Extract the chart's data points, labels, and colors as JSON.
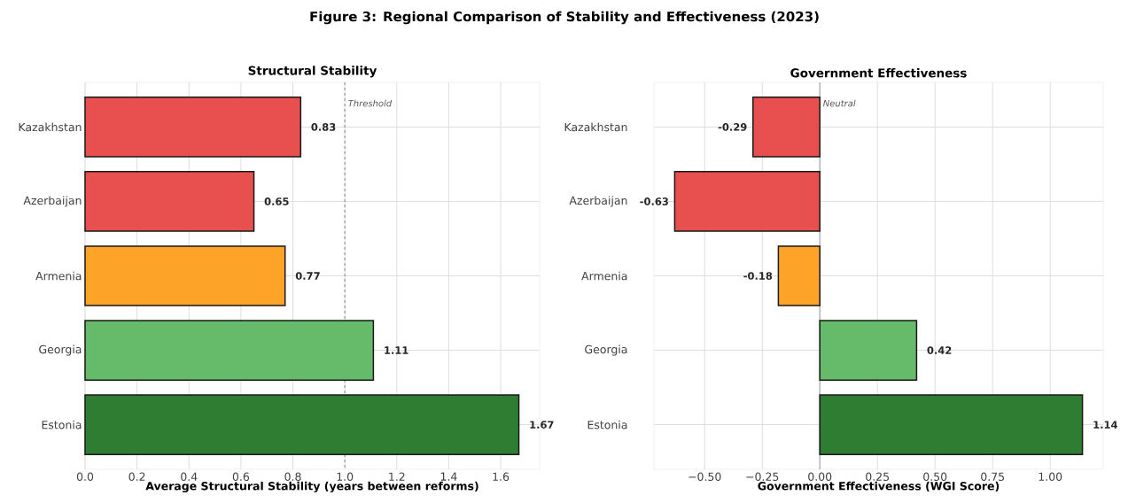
{
  "chart_data": [
    {
      "type": "bar",
      "orientation": "horizontal",
      "title": "Structural Stability",
      "xlabel": "Average Structural Stability (years between reforms)",
      "annotations": [
        "Figure 3: Regional Comparison of Stability and Effectiveness (2023)"
      ],
      "categories": [
        "Kazakhstan",
        "Azerbaijan",
        "Armenia",
        "Georgia",
        "Estonia"
      ],
      "values": [
        0.83,
        0.65,
        0.77,
        1.11,
        1.67
      ],
      "colors": [
        "#e85050",
        "#e85050",
        "#fda428",
        "#66bb6a",
        "#2e7d32"
      ],
      "xlim": [
        0,
        1.75
      ],
      "xticks": [
        {
          "value": 0,
          "label": "0.0"
        },
        0.2,
        0.4,
        0.6,
        0.8,
        {
          "value": 1.0,
          "label": "1.0"
        },
        1.2,
        1.4,
        1.6
      ],
      "ref_lines": [
        {
          "axis": "x",
          "value": 1.0,
          "label": "Threshold",
          "color": "#999999",
          "line_style": "dashed"
        }
      ],
      "data_labels": true,
      "grid": true
    },
    {
      "type": "bar",
      "orientation": "horizontal",
      "title": "Government Effectiveness",
      "xlabel": "Government Effectiveness (WGI Score)",
      "categories": [
        "Kazakhstan",
        "Azerbaijan",
        "Armenia",
        "Georgia",
        "Estonia"
      ],
      "values": [
        -0.29,
        -0.63,
        -0.18,
        0.42,
        1.14
      ],
      "colors": [
        "#e85050",
        "#e85050",
        "#fda428",
        "#66bb6a",
        "#2e7d32"
      ],
      "xlim": [
        -0.72,
        1.23
      ],
      "xticks": [
        {
          "value": -0.5,
          "label": "−0.50"
        },
        {
          "value": -0.25,
          "label": "−0.25"
        },
        {
          "value": 0,
          "label": "0.00"
        },
        {
          "value": 0.25,
          "label": "0.25"
        },
        {
          "value": 0.5,
          "label": "0.50"
        },
        {
          "value": 0.75,
          "label": "0.75"
        },
        {
          "value": 1.0,
          "label": "1.00"
        }
      ],
      "ref_lines": [
        {
          "axis": "x",
          "value": 0,
          "label": "Neutral",
          "color": "#aaaaaa",
          "line_style": "solid"
        }
      ],
      "data_labels": true,
      "grid": true
    }
  ]
}
